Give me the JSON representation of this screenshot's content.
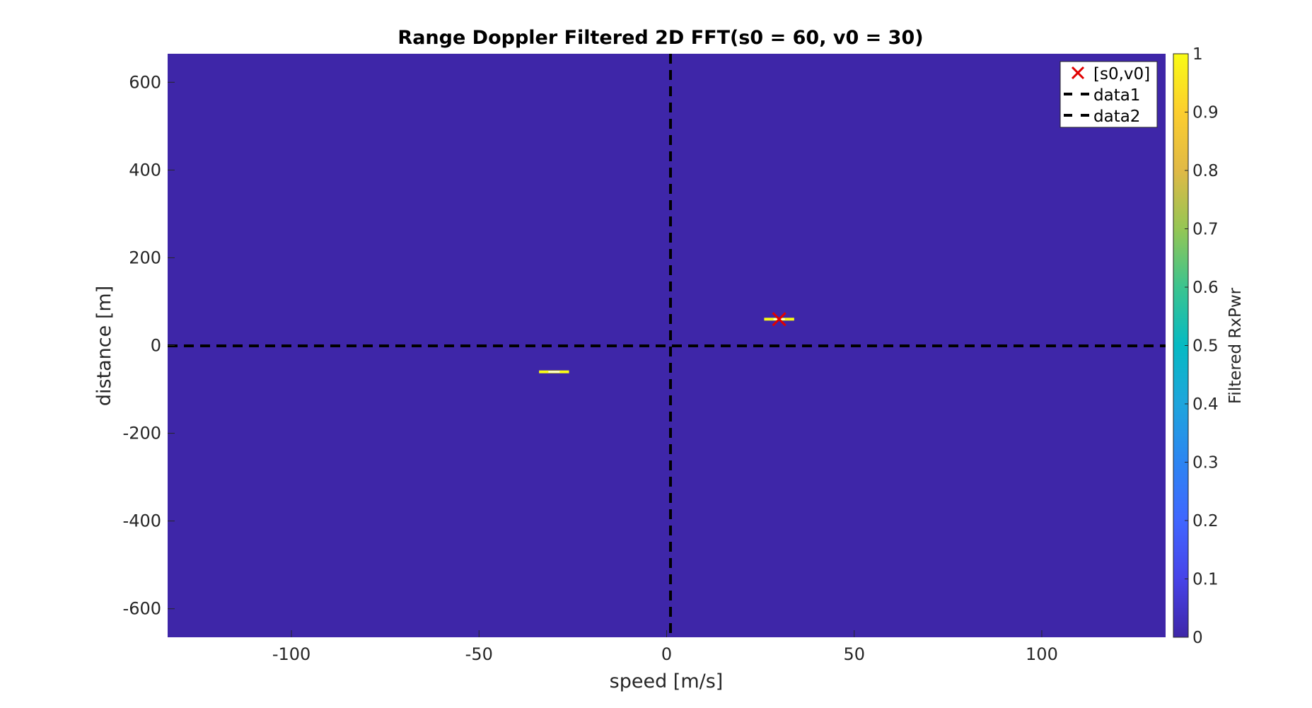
{
  "chart_data": {
    "type": "heatmap",
    "title": "Range Doppler Filtered 2D FFT(s0 = 60, v0 = 30)",
    "xlabel": "speed [m/s]",
    "ylabel": "distance [m]",
    "xlim": [
      -133,
      133
    ],
    "ylim": [
      -665,
      665
    ],
    "xticks": [
      -100,
      -50,
      0,
      50,
      100
    ],
    "yticks": [
      -600,
      -400,
      -200,
      0,
      200,
      400,
      600
    ],
    "colormap": "parula",
    "background_value": 0,
    "background_color": "#3e26a8",
    "colorbar": {
      "label": "Filtered RxPwr",
      "range": [
        0,
        1
      ],
      "ticks": [
        0,
        0.1,
        0.2,
        0.3,
        0.4,
        0.5,
        0.6,
        0.7,
        0.8,
        0.9,
        1
      ]
    },
    "peaks": [
      {
        "speed": 30,
        "distance": 60,
        "value": 1,
        "half_width_speed": 4
      },
      {
        "speed": -30,
        "distance": -60,
        "value": 1,
        "half_width_speed": 4
      }
    ],
    "target_marker": {
      "name": "[s0,v0]",
      "speed": 30,
      "distance": 60,
      "color": "#e00000",
      "marker": "x"
    },
    "reference_lines": [
      {
        "name": "data1",
        "orientation": "vertical",
        "speed": 0,
        "style": "dashed",
        "color": "#000000"
      },
      {
        "name": "data2",
        "orientation": "horizontal",
        "distance": 0,
        "style": "dashed",
        "color": "#000000"
      }
    ],
    "legend": {
      "position": "top-right",
      "entries": [
        "[s0,v0]",
        "data1",
        "data2"
      ]
    }
  }
}
